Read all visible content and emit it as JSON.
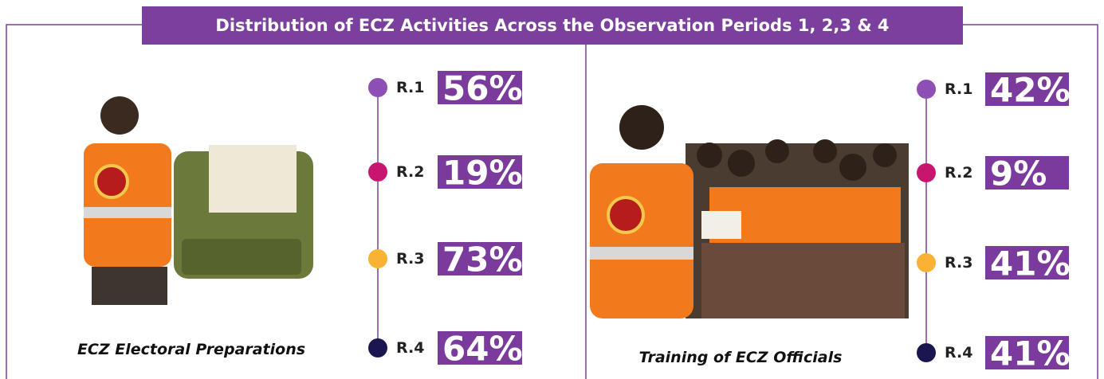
{
  "title": "Distribution of ECZ Activities Across the Observation Periods 1, 2,3 & 4",
  "panels": [
    {
      "caption": "ECZ Electoral Preparations",
      "items": [
        {
          "label": "R.1",
          "value": "56%"
        },
        {
          "label": "R.2",
          "value": "19%"
        },
        {
          "label": "R.3",
          "value": "73%"
        },
        {
          "label": "R.4",
          "value": "64%"
        }
      ]
    },
    {
      "caption": "Training of ECZ Officials",
      "items": [
        {
          "label": "R.1",
          "value": "42%"
        },
        {
          "label": "R.2",
          "value": "9%"
        },
        {
          "label": "R.3",
          "value": "41%"
        },
        {
          "label": "R.4",
          "value": "41%"
        }
      ]
    }
  ]
}
